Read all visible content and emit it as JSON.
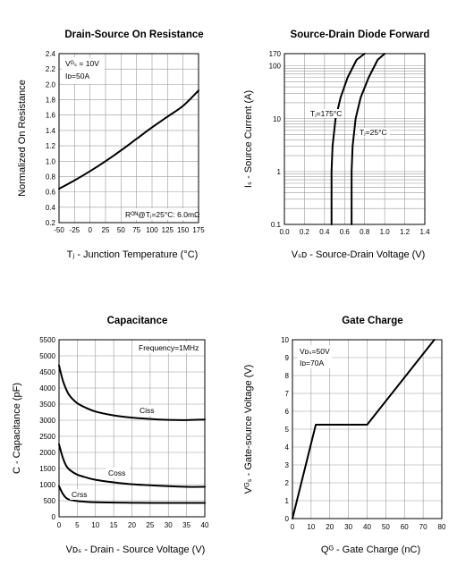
{
  "chart_data": [
    {
      "type": "line",
      "title": "Drain-Source On Resistance",
      "xlabel": "Tⱼ - Junction Temperature (°C)",
      "ylabel": "Normalized On Resistance",
      "x_ticks": [
        "-50",
        "-25",
        "0",
        "25",
        "50",
        "75",
        "100",
        "125",
        "150",
        "175"
      ],
      "y_ticks": [
        "0.2",
        "0.4",
        "0.6",
        "0.8",
        "1.0",
        "1.2",
        "1.4",
        "1.6",
        "1.8",
        "2.0",
        "2.2",
        "2.4"
      ],
      "xlim": [
        -50,
        175
      ],
      "ylim": [
        0.2,
        2.4
      ],
      "grid": true,
      "annotations": [
        "Vᴳₛ = 10V",
        "Iᴅ=50A",
        "Rᴼᴺ@Tⱼ=25°C: 6.0mΩ"
      ],
      "series": [
        {
          "x": [
            -50,
            -25,
            0,
            25,
            50,
            75,
            100,
            125,
            150,
            175
          ],
          "values": [
            0.64,
            0.75,
            0.87,
            1.0,
            1.14,
            1.29,
            1.44,
            1.58,
            1.72,
            1.92
          ]
        }
      ]
    },
    {
      "type": "line",
      "title": "Source-Drain Diode Forward",
      "xlabel": "Vₛᴅ - Source-Drain Voltage (V)",
      "ylabel": "Iₛ - Source Current (A)",
      "x_ticks": [
        "0.0",
        "0.2",
        "0.4",
        "0.6",
        "0.8",
        "1.0",
        "1.2",
        "1.4"
      ],
      "y_ticks": [
        "0.1",
        "1",
        "10",
        "100",
        "170"
      ],
      "xlim": [
        0,
        1.4
      ],
      "ylim": [
        0.1,
        170
      ],
      "yscale": "log",
      "grid": true,
      "annotations": [
        "Tⱼ=175°C",
        "Tⱼ=25°C"
      ],
      "series": [
        {
          "name": "Tⱼ=175°C",
          "x": [
            0.47,
            0.47,
            0.48,
            0.51,
            0.56,
            0.63,
            0.72,
            0.8
          ],
          "values": [
            0.1,
            1,
            3,
            10,
            25,
            60,
            130,
            170
          ]
        },
        {
          "name": "Tⱼ=25°C",
          "x": [
            0.67,
            0.67,
            0.68,
            0.71,
            0.76,
            0.84,
            0.93,
            1.0
          ],
          "values": [
            0.1,
            1,
            3,
            10,
            25,
            60,
            130,
            170
          ]
        }
      ]
    },
    {
      "type": "line",
      "title": "Capacitance",
      "xlabel": "Vᴅₛ - Drain - Source Voltage (V)",
      "ylabel": "C - Capacitance (pF)",
      "x_ticks": [
        "0",
        "5",
        "10",
        "15",
        "20",
        "25",
        "30",
        "35",
        "40"
      ],
      "y_ticks": [
        "0",
        "500",
        "1000",
        "1500",
        "2000",
        "2500",
        "3000",
        "3500",
        "4000",
        "4500",
        "5000",
        "5500"
      ],
      "xlim": [
        0,
        40
      ],
      "ylim": [
        0,
        5500
      ],
      "grid": true,
      "annotations": [
        "Frequency=1MHz"
      ],
      "series": [
        {
          "name": "Ciss",
          "x": [
            0,
            1,
            2,
            3,
            5,
            7.5,
            10,
            15,
            20,
            25,
            30,
            35,
            40
          ],
          "values": [
            4700,
            4250,
            3950,
            3750,
            3530,
            3380,
            3270,
            3150,
            3080,
            3040,
            3010,
            3005,
            3020
          ]
        },
        {
          "name": "Coss",
          "x": [
            0,
            1,
            2,
            3,
            5,
            7.5,
            10,
            15,
            20,
            25,
            30,
            35,
            40
          ],
          "values": [
            2250,
            1850,
            1580,
            1450,
            1310,
            1220,
            1150,
            1070,
            1010,
            980,
            950,
            930,
            930
          ]
        },
        {
          "name": "Crss",
          "x": [
            0,
            1,
            2,
            3,
            5,
            7.5,
            10,
            15,
            20,
            25,
            30,
            35,
            40
          ],
          "values": [
            950,
            720,
            580,
            530,
            490,
            465,
            450,
            440,
            435,
            430,
            430,
            430,
            430
          ]
        }
      ]
    },
    {
      "type": "line",
      "title": "Gate Charge",
      "xlabel": "Qᴳ - Gate Charge (nC)",
      "ylabel": "Vᴳₛ - Gate-source Voltage (V)",
      "x_ticks": [
        "0",
        "10",
        "20",
        "30",
        "40",
        "50",
        "60",
        "70",
        "80"
      ],
      "y_ticks": [
        "0",
        "1",
        "2",
        "3",
        "4",
        "5",
        "6",
        "7",
        "8",
        "9",
        "10"
      ],
      "xlim": [
        0,
        80
      ],
      "ylim": [
        0,
        10
      ],
      "grid": true,
      "annotations": [
        "Vᴅₛ=50V",
        "Iᴅ=70A"
      ],
      "series": [
        {
          "x": [
            0,
            12.5,
            40,
            76
          ],
          "values": [
            0,
            5.25,
            5.25,
            10
          ]
        }
      ]
    }
  ]
}
